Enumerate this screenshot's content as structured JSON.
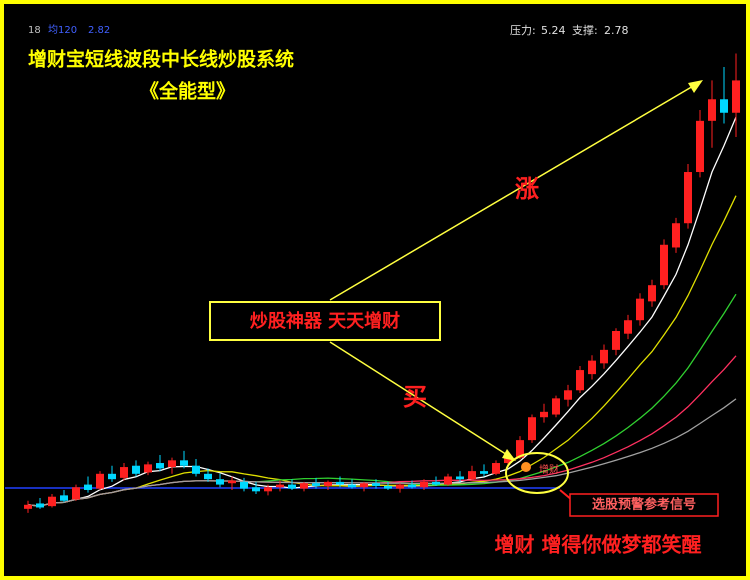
{
  "chart_data": {
    "type": "candlestick",
    "title": "增财宝短线波段中长线炒股系统",
    "subtitle": "《全能型》",
    "header": {
      "left_id": "18",
      "ma_label": "均120",
      "ma_value": 2.82,
      "pressure_label": "压力:",
      "pressure": 5.24,
      "support_label": "支撑:",
      "support": 2.78
    },
    "annotations": {
      "rise": "涨",
      "slogan_box": "炒股神器 天天增财",
      "buy": "买",
      "signal": "增财",
      "signal_note": "选股预警参考信号",
      "footer": "增财 增得你做梦都笑醒"
    },
    "up_color": "#ff2020",
    "down_color": "#00d8ff",
    "ylim": [
      2.4,
      6.0
    ],
    "ma_periods": [
      5,
      10,
      20,
      30,
      45
    ],
    "ma_colors": [
      "#ffffff",
      "#e0e000",
      "#30d030",
      "#ff3060",
      "#a0a0a0"
    ],
    "candles": [
      [
        2.52,
        2.58,
        2.49,
        2.55
      ],
      [
        2.56,
        2.6,
        2.52,
        2.53
      ],
      [
        2.54,
        2.63,
        2.53,
        2.61
      ],
      [
        2.62,
        2.66,
        2.57,
        2.58
      ],
      [
        2.59,
        2.7,
        2.58,
        2.68
      ],
      [
        2.7,
        2.76,
        2.64,
        2.66
      ],
      [
        2.67,
        2.8,
        2.66,
        2.78
      ],
      [
        2.78,
        2.84,
        2.72,
        2.74
      ],
      [
        2.75,
        2.86,
        2.73,
        2.83
      ],
      [
        2.84,
        2.88,
        2.76,
        2.78
      ],
      [
        2.79,
        2.87,
        2.77,
        2.85
      ],
      [
        2.86,
        2.92,
        2.8,
        2.82
      ],
      [
        2.83,
        2.9,
        2.78,
        2.88
      ],
      [
        2.88,
        2.95,
        2.82,
        2.84
      ],
      [
        2.84,
        2.89,
        2.76,
        2.78
      ],
      [
        2.78,
        2.82,
        2.72,
        2.74
      ],
      [
        2.74,
        2.78,
        2.68,
        2.7
      ],
      [
        2.71,
        2.76,
        2.66,
        2.73
      ],
      [
        2.72,
        2.75,
        2.65,
        2.67
      ],
      [
        2.68,
        2.72,
        2.63,
        2.65
      ],
      [
        2.65,
        2.7,
        2.62,
        2.68
      ],
      [
        2.68,
        2.73,
        2.65,
        2.7
      ],
      [
        2.7,
        2.74,
        2.66,
        2.67
      ],
      [
        2.67,
        2.72,
        2.65,
        2.71
      ],
      [
        2.71,
        2.75,
        2.67,
        2.69
      ],
      [
        2.69,
        2.73,
        2.66,
        2.72
      ],
      [
        2.72,
        2.76,
        2.68,
        2.7
      ],
      [
        2.7,
        2.74,
        2.67,
        2.68
      ],
      [
        2.68,
        2.72,
        2.65,
        2.71
      ],
      [
        2.71,
        2.74,
        2.67,
        2.69
      ],
      [
        2.69,
        2.72,
        2.66,
        2.67
      ],
      [
        2.67,
        2.71,
        2.64,
        2.7
      ],
      [
        2.7,
        2.73,
        2.67,
        2.68
      ],
      [
        2.68,
        2.74,
        2.66,
        2.72
      ],
      [
        2.72,
        2.76,
        2.69,
        2.7
      ],
      [
        2.7,
        2.78,
        2.69,
        2.76
      ],
      [
        2.76,
        2.8,
        2.72,
        2.74
      ],
      [
        2.74,
        2.84,
        2.73,
        2.8
      ],
      [
        2.8,
        2.85,
        2.76,
        2.78
      ],
      [
        2.78,
        2.88,
        2.77,
        2.86
      ],
      [
        2.86,
        2.93,
        2.84,
        2.9
      ],
      [
        2.9,
        3.06,
        2.89,
        3.03
      ],
      [
        3.03,
        3.22,
        3.01,
        3.2
      ],
      [
        3.2,
        3.3,
        3.16,
        3.24
      ],
      [
        3.22,
        3.36,
        3.2,
        3.34
      ],
      [
        3.33,
        3.44,
        3.28,
        3.4
      ],
      [
        3.4,
        3.58,
        3.38,
        3.55
      ],
      [
        3.52,
        3.66,
        3.48,
        3.62
      ],
      [
        3.6,
        3.74,
        3.56,
        3.7
      ],
      [
        3.7,
        3.86,
        3.66,
        3.84
      ],
      [
        3.82,
        3.96,
        3.78,
        3.92
      ],
      [
        3.92,
        4.12,
        3.88,
        4.08
      ],
      [
        4.06,
        4.22,
        4.02,
        4.18
      ],
      [
        4.18,
        4.52,
        4.15,
        4.48
      ],
      [
        4.46,
        4.68,
        4.42,
        4.64
      ],
      [
        4.64,
        5.08,
        4.6,
        5.02
      ],
      [
        5.02,
        5.48,
        4.98,
        5.4
      ],
      [
        5.4,
        5.7,
        5.2,
        5.56
      ],
      [
        5.56,
        5.8,
        5.38,
        5.46
      ],
      [
        5.46,
        5.9,
        5.28,
        5.7
      ]
    ]
  }
}
